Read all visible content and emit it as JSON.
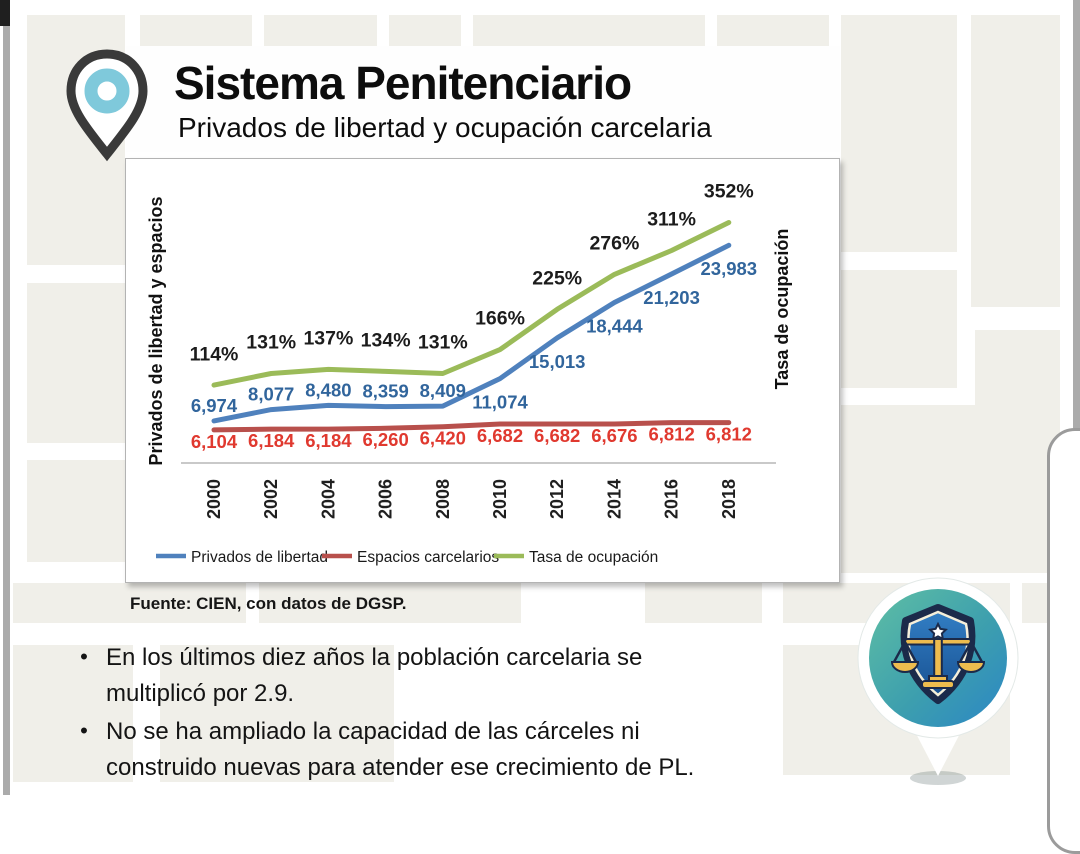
{
  "header": {
    "title": "Sistema Penitenciario",
    "subtitle": "Privados de libertad y ocupación carcelaria"
  },
  "chart_data": {
    "type": "line",
    "title": "Privados de libertad y ocupación carcelaria",
    "categories": [
      "2000",
      "2002",
      "2004",
      "2006",
      "2008",
      "2010",
      "2012",
      "2014",
      "2016",
      "2018"
    ],
    "series": [
      {
        "name": "Privados de libertad",
        "axis": "left",
        "color": "#4f81bd",
        "label_color": "#31659c",
        "values": [
          6974,
          8077,
          8480,
          8359,
          8409,
          11074,
          15013,
          18444,
          21203,
          23983
        ],
        "label_format": "number"
      },
      {
        "name": "Espacios carcelarios",
        "axis": "left",
        "color": "#b8504c",
        "label_color": "#e0392f",
        "values": [
          6104,
          6184,
          6184,
          6260,
          6420,
          6682,
          6682,
          6676,
          6812,
          6812
        ],
        "label_format": "number"
      },
      {
        "name": "Tasa de ocupación",
        "axis": "right",
        "color": "#9bbb59",
        "label_color": "#1c1c1c",
        "values": [
          114,
          131,
          137,
          134,
          131,
          166,
          225,
          276,
          311,
          352
        ],
        "label_format": "percent"
      }
    ],
    "left_axis_label": "Privados de libertad y espacios",
    "right_axis_label": "Tasa de ocupación",
    "left_axis_range": [
      2900,
      30700
    ],
    "right_axis_range": [
      0,
      420
    ],
    "legend_position": "bottom",
    "grid": false
  },
  "source": "Fuente: CIEN, con datos de DGSP.",
  "bullets": [
    "En los últimos diez años la población carcelaria se multiplicó por 2.9.",
    "No se ha ampliado la capacidad de las cárceles ni construido nuevas para atender ese crecimiento de PL."
  ],
  "icons": {
    "pin": "location-pin-icon",
    "badge": "justice-scales-badge"
  },
  "colors": {
    "pin_ring": "#7fc9db",
    "pin_outline": "#3a3a3a",
    "map_block": "#f0efe9",
    "badge_teal": "#4fb39b",
    "badge_blue": "#2b86c5",
    "shield_fill": "#2a6db4",
    "shield_outline": "#1b2a4a",
    "scales_gold": "#eebc4e"
  }
}
